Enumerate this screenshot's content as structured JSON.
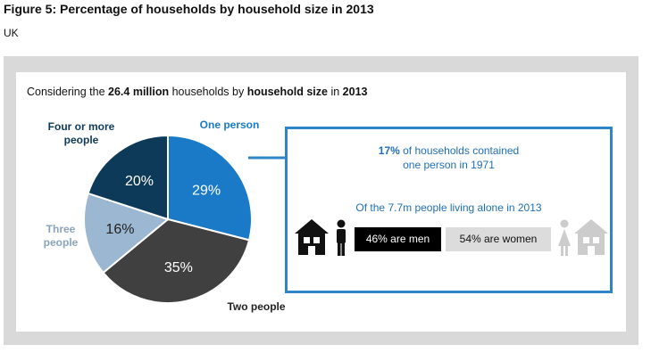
{
  "figure": {
    "title": "Figure 5: Percentage of households by household size in 2013",
    "subtitle": "UK"
  },
  "intro": {
    "pre": "Considering the ",
    "b1": "26.4 million",
    "mid1": " households by ",
    "b2": "household size",
    "mid2": " in ",
    "b3": "2013"
  },
  "chart_data": {
    "type": "pie",
    "slices": [
      {
        "label": "One person",
        "value": 29,
        "value_label": "29%",
        "color": "#1a7ac8",
        "label_color": "#1a7ac8"
      },
      {
        "label": "Two people",
        "value": 35,
        "value_label": "35%",
        "color": "#404040",
        "label_color": "#222222"
      },
      {
        "label": "Three people",
        "value": 16,
        "value_label": "16%",
        "color": "#9bb7d1",
        "label_color": "#8aa4bd"
      },
      {
        "label": "Four or more people",
        "value": 20,
        "value_label": "20%",
        "color": "#0e3a5a",
        "label_color": "#0e3a5a"
      }
    ]
  },
  "labels": {
    "one_person": "One person",
    "two_people": "Two people",
    "three_line1": "Three",
    "three_line2": "people",
    "four_line1": "Four or more",
    "four_line2": "people"
  },
  "info": {
    "stat_bold": "17%",
    "stat_rest": " of households contained",
    "stat_line2": "one person in 1971",
    "alone_text": "Of the 7.7m people living alone in 2013",
    "men_text": "46% are men",
    "women_text": "54% are women",
    "men_share": 46,
    "women_share": 54
  },
  "colors": {
    "accent_blue": "#2e86c9",
    "frame_grey": "#d9d9d9",
    "women_icon_grey": "#cccccc"
  }
}
